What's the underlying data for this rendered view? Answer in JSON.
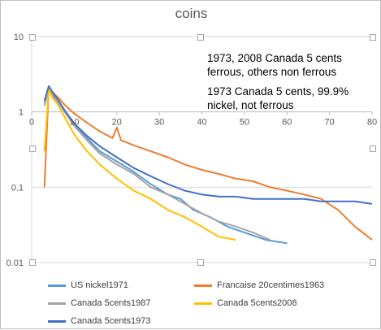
{
  "chart_data": {
    "type": "line",
    "title": "coins",
    "xlabel": "",
    "ylabel": "",
    "xlim": [
      0,
      80
    ],
    "ylim": [
      0.01,
      10
    ],
    "y_scale": "log",
    "x_ticks": [
      "0",
      "10",
      "20",
      "30",
      "40",
      "50",
      "60",
      "70",
      "80"
    ],
    "y_ticks": [
      "10",
      "1",
      "0.1",
      "0.01"
    ],
    "grid": "horizontal",
    "legend_position": "bottom",
    "annotations": [
      "1973, 2008 Canada 5 cents ferrous, others non ferrous",
      "1973 Canada 5 cents, 99.9% nickel, not ferrous"
    ],
    "series": [
      {
        "name": "US nickel1971",
        "color": "#5b9bd5",
        "x": [
          3,
          4,
          5,
          6,
          8,
          10,
          13,
          16,
          20,
          24,
          28,
          32,
          35,
          38,
          42,
          46,
          50,
          55,
          60
        ],
        "y": [
          1.3,
          2.1,
          1.7,
          1.5,
          1.0,
          0.7,
          0.45,
          0.3,
          0.22,
          0.16,
          0.11,
          0.08,
          0.07,
          0.05,
          0.04,
          0.03,
          0.025,
          0.02,
          0.018
        ]
      },
      {
        "name": "Francaise 20centimes1963",
        "color": "#ed7d31",
        "x": [
          3,
          4,
          5,
          6,
          8,
          10,
          13,
          16,
          19,
          20,
          21,
          24,
          28,
          32,
          36,
          40,
          44,
          48,
          52,
          56,
          60,
          64,
          68,
          72,
          76,
          80
        ],
        "y": [
          0.1,
          2.1,
          1.8,
          1.6,
          1.2,
          0.95,
          0.72,
          0.55,
          0.45,
          0.62,
          0.42,
          0.36,
          0.3,
          0.25,
          0.2,
          0.17,
          0.15,
          0.13,
          0.12,
          0.1,
          0.09,
          0.08,
          0.07,
          0.05,
          0.03,
          0.02
        ]
      },
      {
        "name": "Canada 5cents1987",
        "color": "#a5a5a5",
        "x": [
          3,
          4,
          5,
          6,
          8,
          10,
          13,
          16,
          20,
          24,
          28,
          32,
          36,
          40,
          44,
          48,
          52,
          56
        ],
        "y": [
          1.2,
          2.0,
          1.6,
          1.4,
          0.95,
          0.65,
          0.42,
          0.28,
          0.2,
          0.15,
          0.1,
          0.08,
          0.06,
          0.045,
          0.035,
          0.03,
          0.025,
          0.02
        ]
      },
      {
        "name": "Canada 5cents2008",
        "color": "#ffc000",
        "x": [
          3,
          4,
          5,
          6,
          8,
          10,
          13,
          16,
          20,
          24,
          28,
          32,
          36,
          40,
          44,
          48
        ],
        "y": [
          0.3,
          2.0,
          1.5,
          1.3,
          0.8,
          0.5,
          0.3,
          0.2,
          0.13,
          0.09,
          0.07,
          0.05,
          0.04,
          0.03,
          0.022,
          0.02
        ]
      },
      {
        "name": "Canada 5cents1973",
        "color": "#4472c4",
        "x": [
          3,
          4,
          5,
          6,
          8,
          10,
          13,
          16,
          20,
          24,
          28,
          32,
          36,
          40,
          44,
          48,
          52,
          56,
          60,
          64,
          68,
          72,
          76,
          80
        ],
        "y": [
          1.4,
          2.2,
          1.8,
          1.5,
          1.0,
          0.7,
          0.48,
          0.35,
          0.25,
          0.18,
          0.14,
          0.11,
          0.09,
          0.08,
          0.075,
          0.075,
          0.07,
          0.07,
          0.07,
          0.07,
          0.065,
          0.065,
          0.065,
          0.06
        ]
      }
    ]
  }
}
